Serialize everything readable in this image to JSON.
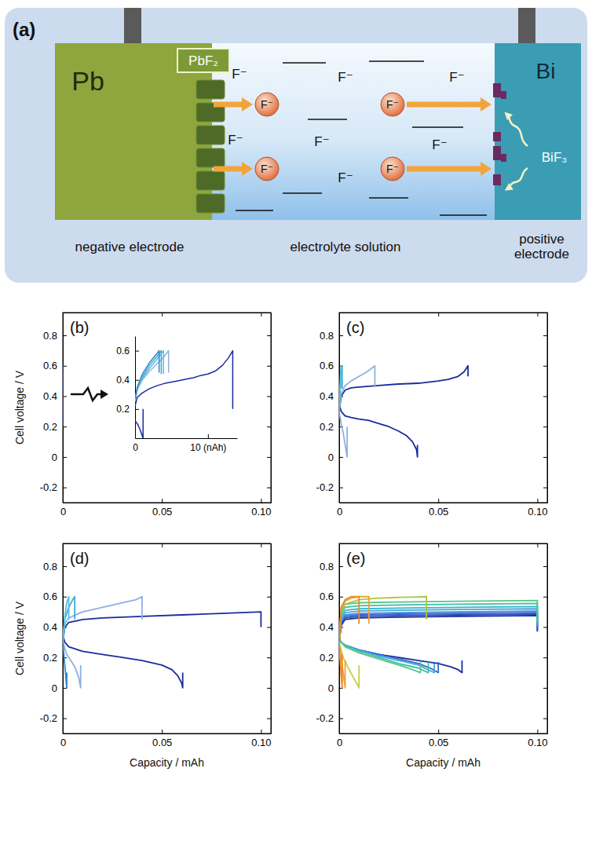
{
  "diagram": {
    "title": "(a)",
    "negative": "Pb",
    "coating": "PbF₂",
    "positive": "Bi",
    "product": "BiF₃",
    "moving_ions": [
      "F⁻",
      "F⁻",
      "F⁻",
      "F⁻"
    ],
    "free_ions": [
      "F⁻",
      "F⁻",
      "F⁻",
      "F⁻",
      "F⁻",
      "F⁻",
      "F⁻"
    ],
    "captions": [
      "negative electrode",
      "electrolyte solution",
      "positive electrode"
    ]
  },
  "chart_data": [
    {
      "type": "line",
      "title": "(b)",
      "y_label": "Cell voltage / V",
      "xlim": [
        0,
        0.105
      ],
      "ylim": [
        -0.3,
        0.95
      ],
      "xticks": [
        0,
        0.05,
        {
          "value": 0.1,
          "label": "0.10"
        }
      ],
      "yticks": [
        -0.2,
        0,
        0.2,
        0.4,
        0.6,
        0.8
      ],
      "series": [
        {
          "color": "#1a2c9c",
          "x": [
            0,
            1.3e-05,
            1.3e-05
          ],
          "values": [
            0.22,
            0.6,
            0.2
          ]
        }
      ],
      "inset": {
        "type": "line",
        "xlim": [
          0,
          14
        ],
        "ylim": [
          0,
          0.7
        ],
        "xticks": [
          0,
          {
            "value": 10,
            "label": "10 (nAh)"
          }
        ],
        "yticks": [
          0.2,
          0.4,
          0.6
        ],
        "series": [
          {
            "color": "#1a2c9c",
            "x": [
              0,
              0.3,
              1,
              2,
              3,
              4,
              5,
              6,
              7,
              8,
              9,
              10,
              11,
              12,
              12.8,
              13.4,
              13.4
            ],
            "values": [
              0.22,
              0.28,
              0.31,
              0.34,
              0.36,
              0.375,
              0.385,
              0.395,
              0.405,
              0.415,
              0.43,
              0.44,
              0.46,
              0.5,
              0.55,
              0.6,
              0.2
            ]
          },
          {
            "color": "#1a2c9c",
            "x": [
              0,
              0.3,
              0.6,
              0.9,
              1.1,
              1.1
            ],
            "values": [
              0.12,
              0.1,
              0.07,
              0.03,
              0,
              0.2
            ]
          },
          {
            "color": "#8fb0e0",
            "x": [
              0,
              0.3,
              1,
              2,
              3,
              4,
              4.6,
              4.6
            ],
            "values": [
              0.25,
              0.33,
              0.4,
              0.46,
              0.51,
              0.56,
              0.6,
              0.45
            ]
          },
          {
            "color": "#3fa8dc",
            "x": [
              0,
              0.3,
              1,
              2,
              3,
              3.6,
              3.6
            ],
            "values": [
              0.26,
              0.34,
              0.42,
              0.5,
              0.56,
              0.6,
              0.44
            ]
          },
          {
            "color": "#5cc0d8",
            "x": [
              0,
              0.3,
              1,
              2,
              3,
              3.9,
              3.9
            ],
            "values": [
              0.26,
              0.34,
              0.41,
              0.48,
              0.54,
              0.6,
              0.44
            ]
          },
          {
            "color": "#2f86c8",
            "x": [
              0,
              0.3,
              1,
              2,
              3,
              3.3,
              3.3
            ],
            "values": [
              0.27,
              0.35,
              0.44,
              0.52,
              0.58,
              0.6,
              0.45
            ]
          }
        ]
      }
    },
    {
      "type": "line",
      "title": "(c)",
      "xlim": [
        0,
        0.105
      ],
      "ylim": [
        -0.3,
        0.95
      ],
      "xticks": [
        0,
        0.05,
        {
          "value": 0.1,
          "label": "0.10"
        }
      ],
      "yticks": [
        -0.2,
        0,
        0.2,
        0.4,
        0.6,
        0.8
      ],
      "series": [
        {
          "color": "#1a2c9c",
          "x": [
            0,
            0.001,
            0.003,
            0.006,
            0.01,
            0.02,
            0.03,
            0.04,
            0.05,
            0.055,
            0.06,
            0.063,
            0.065,
            0.065
          ],
          "values": [
            0.3,
            0.4,
            0.44,
            0.455,
            0.46,
            0.47,
            0.48,
            0.485,
            0.5,
            0.51,
            0.53,
            0.56,
            0.6,
            0.53
          ]
        },
        {
          "color": "#1a2c9c",
          "x": [
            0,
            0.001,
            0.003,
            0.006,
            0.01,
            0.015,
            0.02,
            0.025,
            0.03,
            0.034,
            0.037,
            0.039,
            0.0395,
            0.0395
          ],
          "values": [
            0.35,
            0.3,
            0.27,
            0.26,
            0.25,
            0.24,
            0.22,
            0.2,
            0.17,
            0.14,
            0.1,
            0.05,
            0,
            0.08
          ]
        },
        {
          "color": "#8fb0e0",
          "x": [
            0,
            0.001,
            0.003,
            0.006,
            0.01,
            0.014,
            0.017,
            0.018,
            0.018
          ],
          "values": [
            0.3,
            0.42,
            0.47,
            0.5,
            0.53,
            0.56,
            0.59,
            0.6,
            0.46
          ]
        },
        {
          "color": "#8fb0e0",
          "x": [
            0,
            0.001,
            0.002,
            0.003,
            0.004,
            0.004
          ],
          "values": [
            0.3,
            0.22,
            0.16,
            0.08,
            0,
            0.2
          ]
        },
        {
          "color": "#3fa8dc",
          "x": [
            0,
            0.0005,
            0.001,
            0.0015,
            0.0015
          ],
          "values": [
            0.3,
            0.45,
            0.56,
            0.6,
            0.45
          ]
        },
        {
          "color": "#5cc0d8",
          "x": [
            0,
            0.0004,
            0.0008,
            0.001,
            0.001
          ],
          "values": [
            0.3,
            0.45,
            0.57,
            0.6,
            0.45
          ]
        }
      ]
    },
    {
      "type": "line",
      "title": "(d)",
      "y_label": "Cell voltage / V",
      "x_label": "Capacity / mAh",
      "xlim": [
        0,
        0.105
      ],
      "ylim": [
        -0.3,
        0.95
      ],
      "xticks": [
        0,
        0.05,
        {
          "value": 0.1,
          "label": "0.10"
        }
      ],
      "yticks": [
        -0.2,
        0,
        0.2,
        0.4,
        0.6,
        0.8
      ],
      "series": [
        {
          "color": "#1a2c9c",
          "x": [
            0,
            0.001,
            0.003,
            0.01,
            0.02,
            0.04,
            0.06,
            0.08,
            0.1,
            0.1
          ],
          "values": [
            0.3,
            0.4,
            0.43,
            0.45,
            0.46,
            0.47,
            0.48,
            0.49,
            0.5,
            0.4
          ]
        },
        {
          "color": "#1a2c9c",
          "x": [
            0,
            0.001,
            0.003,
            0.01,
            0.02,
            0.03,
            0.04,
            0.05,
            0.055,
            0.058,
            0.06,
            0.0605,
            0.0605
          ],
          "values": [
            0.35,
            0.3,
            0.27,
            0.24,
            0.22,
            0.2,
            0.18,
            0.15,
            0.12,
            0.08,
            0.03,
            0,
            0.1
          ]
        },
        {
          "color": "#8fb0e0",
          "x": [
            0,
            0.001,
            0.003,
            0.01,
            0.02,
            0.03,
            0.037,
            0.04,
            0.04
          ],
          "values": [
            0.3,
            0.42,
            0.46,
            0.5,
            0.53,
            0.56,
            0.58,
            0.6,
            0.45
          ]
        },
        {
          "color": "#8fb0e0",
          "x": [
            0,
            0.002,
            0.004,
            0.006,
            0.008,
            0.009,
            0.009
          ],
          "values": [
            0.3,
            0.22,
            0.18,
            0.14,
            0.07,
            0,
            0.15
          ]
        },
        {
          "color": "#3fa8dc",
          "x": [
            0,
            0.001,
            0.003,
            0.005,
            0.006,
            0.006
          ],
          "values": [
            0.3,
            0.45,
            0.53,
            0.58,
            0.6,
            0.45
          ]
        },
        {
          "color": "#5cc0d8",
          "x": [
            0,
            0.001,
            0.002,
            0.003,
            0.003
          ],
          "values": [
            0.3,
            0.47,
            0.56,
            0.6,
            0.45
          ]
        },
        {
          "color": "#2f86c8",
          "x": [
            0,
            0.001,
            0.002,
            0.002
          ],
          "values": [
            0.3,
            0.15,
            0,
            0.1
          ]
        }
      ]
    },
    {
      "type": "line",
      "title": "(e)",
      "x_label": "Capacity / mAh",
      "xlim": [
        0,
        0.105
      ],
      "ylim": [
        -0.3,
        0.95
      ],
      "xticks": [
        0,
        0.05,
        {
          "value": 0.1,
          "label": "0.10"
        }
      ],
      "yticks": [
        -0.2,
        0,
        0.2,
        0.4,
        0.6,
        0.8
      ],
      "series": [
        {
          "color": "#1a2c9c",
          "x": [
            0,
            0.001,
            0.003,
            0.01,
            0.03,
            0.06,
            0.1,
            0.1
          ],
          "values": [
            0.3,
            0.41,
            0.45,
            0.46,
            0.465,
            0.47,
            0.475,
            0.37
          ]
        },
        {
          "color": "#2a4ab8",
          "x": [
            0,
            0.001,
            0.003,
            0.01,
            0.03,
            0.06,
            0.1,
            0.1
          ],
          "values": [
            0.3,
            0.42,
            0.46,
            0.47,
            0.475,
            0.48,
            0.485,
            0.38
          ]
        },
        {
          "color": "#3366cc",
          "x": [
            0,
            0.001,
            0.003,
            0.01,
            0.03,
            0.06,
            0.1,
            0.1
          ],
          "values": [
            0.3,
            0.43,
            0.47,
            0.48,
            0.485,
            0.49,
            0.495,
            0.39
          ]
        },
        {
          "color": "#4a86d8",
          "x": [
            0,
            0.001,
            0.003,
            0.01,
            0.03,
            0.06,
            0.1,
            0.1
          ],
          "values": [
            0.3,
            0.44,
            0.48,
            0.49,
            0.495,
            0.5,
            0.505,
            0.4
          ]
        },
        {
          "color": "#3fa8dc",
          "x": [
            0,
            0.001,
            0.003,
            0.01,
            0.03,
            0.06,
            0.1,
            0.1
          ],
          "values": [
            0.3,
            0.455,
            0.495,
            0.505,
            0.51,
            0.515,
            0.52,
            0.41
          ]
        },
        {
          "color": "#36b8c8",
          "x": [
            0,
            0.001,
            0.003,
            0.01,
            0.03,
            0.06,
            0.1,
            0.1
          ],
          "values": [
            0.3,
            0.47,
            0.51,
            0.52,
            0.525,
            0.53,
            0.535,
            0.42
          ]
        },
        {
          "color": "#3cbfa8",
          "x": [
            0,
            0.001,
            0.003,
            0.01,
            0.03,
            0.06,
            0.1,
            0.1
          ],
          "values": [
            0.3,
            0.49,
            0.53,
            0.54,
            0.545,
            0.55,
            0.555,
            0.43
          ]
        },
        {
          "color": "#5cc488",
          "x": [
            0,
            0.001,
            0.003,
            0.01,
            0.03,
            0.06,
            0.1,
            0.1
          ],
          "values": [
            0.3,
            0.51,
            0.55,
            0.56,
            0.565,
            0.57,
            0.575,
            0.44
          ]
        },
        {
          "color": "#a8c83c",
          "x": [
            0,
            0.001,
            0.003,
            0.01,
            0.02,
            0.03,
            0.04,
            0.044,
            0.044
          ],
          "values": [
            0.3,
            0.5,
            0.55,
            0.58,
            0.59,
            0.595,
            0.598,
            0.6,
            0.45
          ]
        },
        {
          "color": "#f0a030",
          "x": [
            0,
            0.001,
            0.003,
            0.006,
            0.01,
            0.014,
            0.015,
            0.015
          ],
          "values": [
            0.3,
            0.52,
            0.57,
            0.59,
            0.6,
            0.6,
            0.6,
            0.42
          ]
        },
        {
          "color": "#e88a2a",
          "x": [
            0,
            0.001,
            0.003,
            0.006,
            0.01,
            0.01
          ],
          "values": [
            0.3,
            0.53,
            0.58,
            0.6,
            0.6,
            0.42
          ]
        },
        {
          "color": "#1a2c9c",
          "x": [
            0,
            0.001,
            0.003,
            0.01,
            0.02,
            0.03,
            0.04,
            0.05,
            0.056,
            0.06,
            0.062,
            0.062
          ],
          "values": [
            0.32,
            0.3,
            0.28,
            0.25,
            0.22,
            0.2,
            0.18,
            0.16,
            0.14,
            0.12,
            0.1,
            0.18
          ]
        },
        {
          "color": "#3366cc",
          "x": [
            0,
            0.001,
            0.003,
            0.01,
            0.02,
            0.03,
            0.04,
            0.046,
            0.05,
            0.05
          ],
          "values": [
            0.32,
            0.3,
            0.28,
            0.25,
            0.22,
            0.19,
            0.16,
            0.13,
            0.1,
            0.17
          ]
        },
        {
          "color": "#3fa8dc",
          "x": [
            0,
            0.001,
            0.003,
            0.01,
            0.02,
            0.03,
            0.04,
            0.048,
            0.048
          ],
          "values": [
            0.32,
            0.3,
            0.28,
            0.25,
            0.21,
            0.18,
            0.15,
            0.1,
            0.16
          ]
        },
        {
          "color": "#3cbfa8",
          "x": [
            0,
            0.001,
            0.003,
            0.01,
            0.02,
            0.03,
            0.04,
            0.045,
            0.045
          ],
          "values": [
            0.32,
            0.3,
            0.28,
            0.24,
            0.2,
            0.16,
            0.13,
            0.1,
            0.17
          ]
        },
        {
          "color": "#5cc488",
          "x": [
            0,
            0.001,
            0.003,
            0.01,
            0.02,
            0.03,
            0.037,
            0.041,
            0.041
          ],
          "values": [
            0.32,
            0.3,
            0.27,
            0.23,
            0.19,
            0.15,
            0.12,
            0.1,
            0.17
          ]
        },
        {
          "color": "#c8d040",
          "x": [
            0,
            0.002,
            0.005,
            0.008,
            0.01,
            0.01
          ],
          "values": [
            0.3,
            0.2,
            0.12,
            0.05,
            0,
            0.15
          ]
        },
        {
          "color": "#f0a030",
          "x": [
            0,
            0.001,
            0.002,
            0.003,
            0.003
          ],
          "values": [
            0.3,
            0.2,
            0.1,
            0,
            0.18
          ]
        },
        {
          "color": "#e88a2a",
          "x": [
            0,
            0.0005,
            0.001,
            0.0015,
            0.0015
          ],
          "values": [
            0.25,
            0.18,
            0.08,
            0,
            0.22
          ]
        }
      ]
    }
  ]
}
